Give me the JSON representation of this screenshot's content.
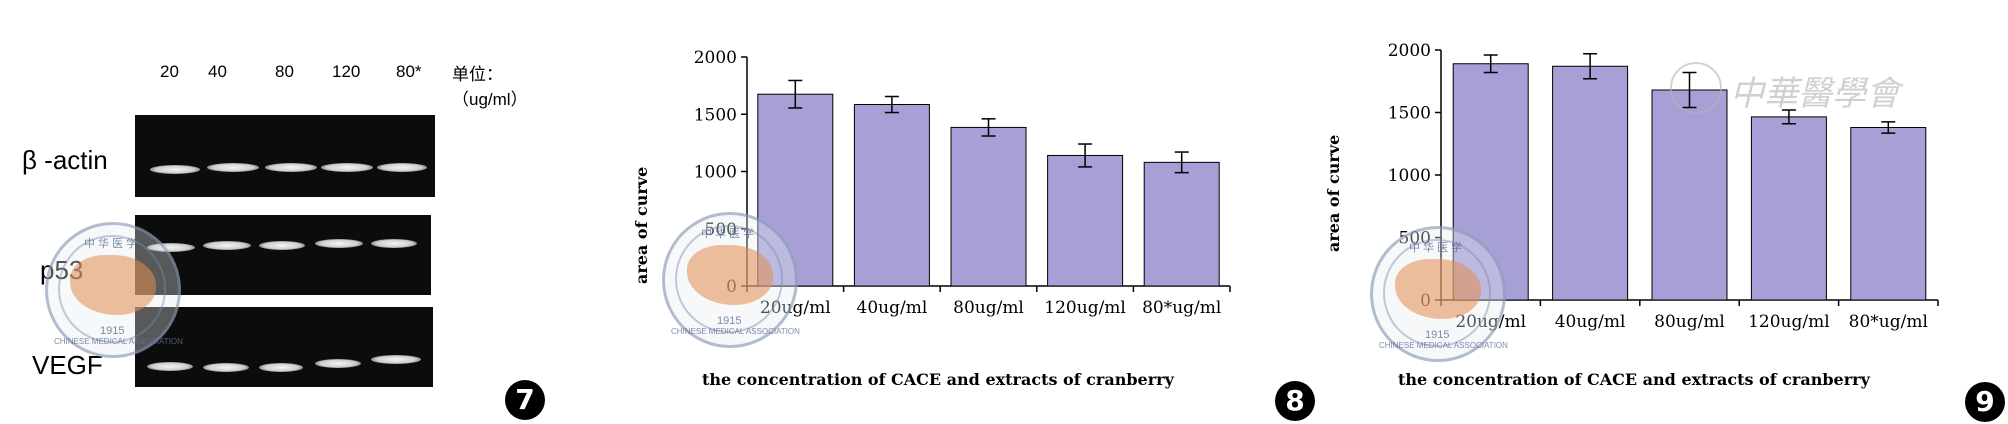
{
  "figure7": {
    "badge": "7",
    "lane_labels": [
      "20",
      "40",
      "80",
      "120",
      "80*"
    ],
    "unit_label": "单位：（ug/ml）",
    "rows": [
      {
        "label": "β -actin",
        "band_intensity": [
          0.9,
          0.95,
          0.95,
          0.95,
          0.9
        ]
      },
      {
        "label": "p53",
        "band_intensity": [
          0.85,
          0.85,
          0.8,
          0.8,
          0.75
        ]
      },
      {
        "label": "VEGF",
        "band_intensity": [
          0.75,
          0.7,
          0.65,
          0.75,
          0.8
        ]
      }
    ]
  },
  "chart_data": [
    {
      "id": "chart8",
      "badge": "8",
      "type": "bar",
      "categories": [
        "20ug/ml",
        "40ug/ml",
        "80ug/ml",
        "120ug/ml",
        "80*ug/ml"
      ],
      "values": [
        1675,
        1585,
        1385,
        1140,
        1080
      ],
      "errors": [
        120,
        70,
        75,
        100,
        90
      ],
      "xlabel": "the concentration of CACE and extracts of cranberry",
      "ylabel": "area of curve",
      "yticks": [
        0,
        500,
        1000,
        1500,
        2000
      ],
      "ylim": [
        0,
        2000
      ],
      "bar_color": "#a6a0d6"
    },
    {
      "id": "chart9",
      "badge": "9",
      "type": "bar",
      "categories": [
        "20ug/ml",
        "40ug/ml",
        "80ug/ml",
        "120ug/ml",
        "80*ug/ml"
      ],
      "values": [
        1890,
        1870,
        1680,
        1465,
        1380
      ],
      "errors": [
        70,
        100,
        140,
        55,
        45
      ],
      "xlabel": "the concentration of CACE and extracts of cranberry",
      "ylabel": "area of curve",
      "yticks": [
        0,
        500,
        1000,
        1500,
        2000
      ],
      "ylim": [
        0,
        2000
      ],
      "bar_color": "#a6a0d6"
    }
  ],
  "seal": {
    "top_text": "中 华 医 学",
    "bottom_text": "CHINESE MEDICAL ASSOCIATION",
    "year": "1915"
  },
  "watermark": {
    "text": "中華醫學會"
  }
}
